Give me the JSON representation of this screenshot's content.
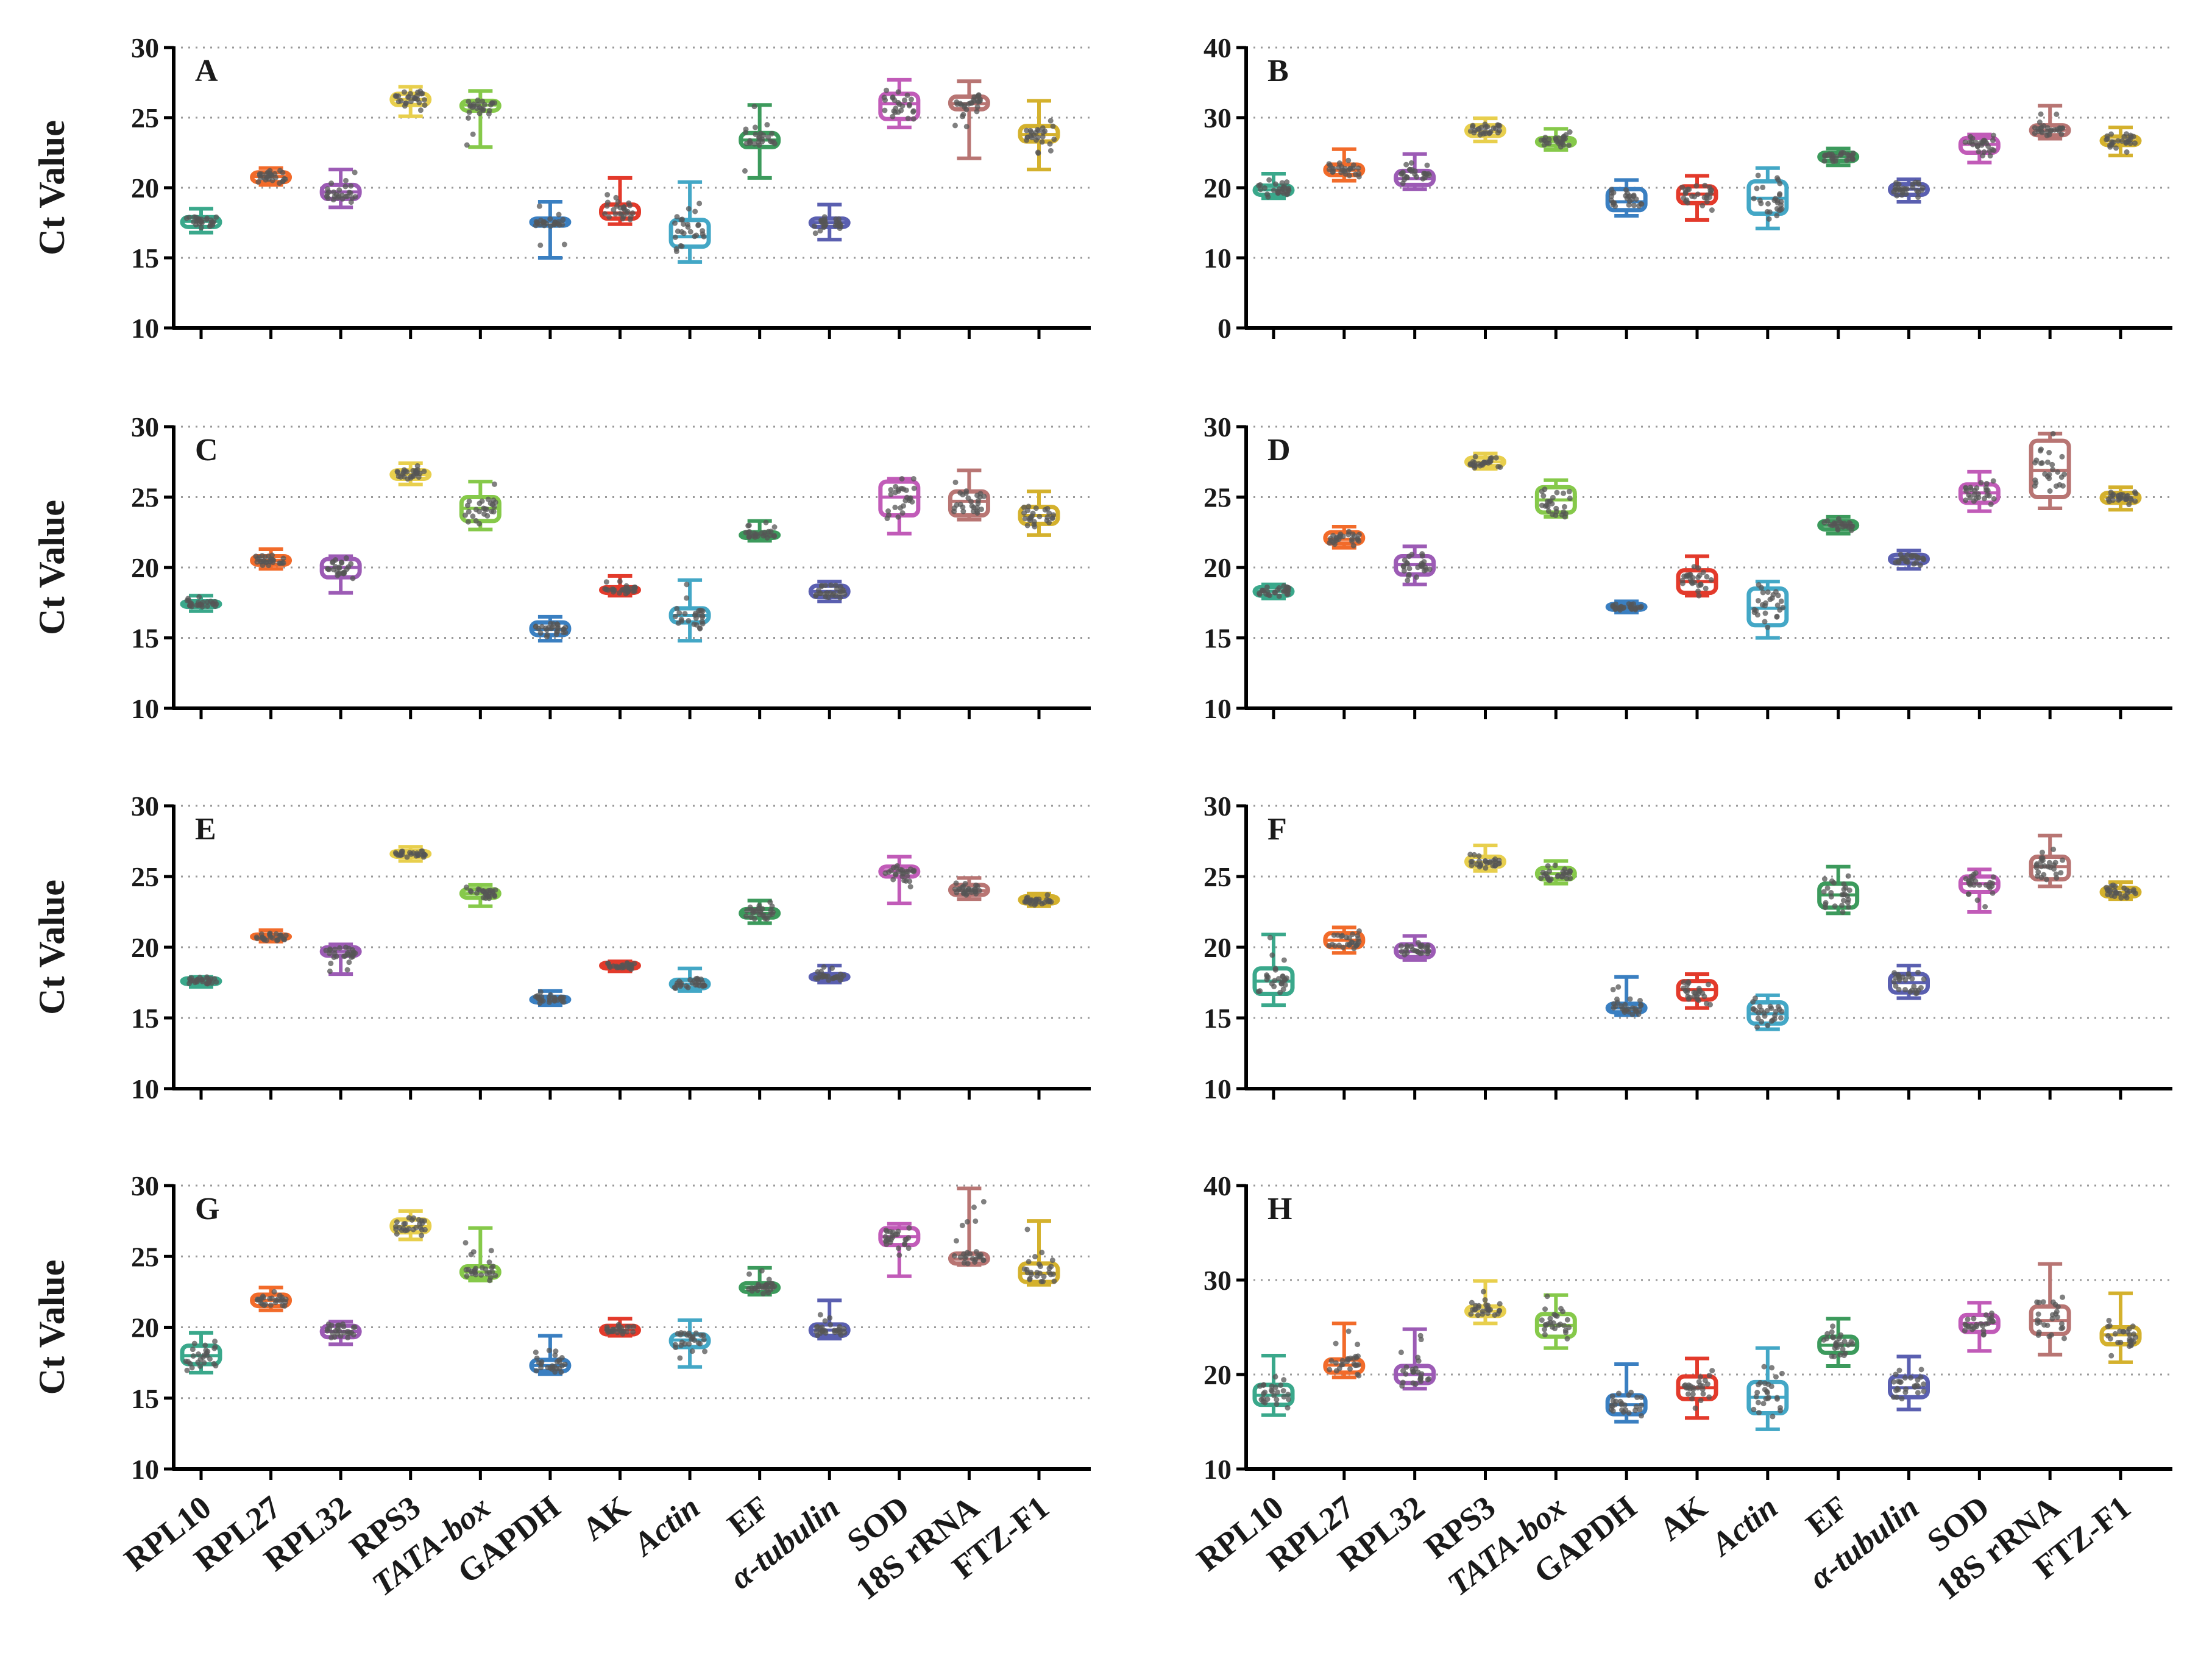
{
  "figure": {
    "ylabel": "Ct Value"
  },
  "categories": [
    {
      "label": "RPL10",
      "italic": false,
      "color": "#3aa88b"
    },
    {
      "label": "RPL27",
      "italic": false,
      "color": "#f26b2a"
    },
    {
      "label": "RPL32",
      "italic": false,
      "color": "#9c5bb5"
    },
    {
      "label": "RPS3",
      "italic": false,
      "color": "#e8cf4d"
    },
    {
      "label": "TATA-box",
      "italic": true,
      "color": "#86c94a"
    },
    {
      "label": "GAPDH",
      "italic": false,
      "color": "#3a7fc1"
    },
    {
      "label": "AK",
      "italic": false,
      "color": "#e33a2b"
    },
    {
      "label": "Actin",
      "italic": true,
      "color": "#43a7c6"
    },
    {
      "label": "EF",
      "italic": false,
      "color": "#3c9a5c"
    },
    {
      "label": "α-tubulin",
      "italic": true,
      "color": "#5a5fb0"
    },
    {
      "label": "SOD",
      "italic": false,
      "color": "#c15bb8"
    },
    {
      "label": "18S rRNA",
      "italic": false,
      "color": "#b87573"
    },
    {
      "label": "FTZ-F1",
      "italic": false,
      "color": "#d4b12d"
    }
  ],
  "chart_data": [
    {
      "panel": "A",
      "type": "box",
      "ylabel": "Ct Value",
      "ylim": [
        10,
        30
      ],
      "yticks": [
        "10",
        "15",
        "20",
        "25",
        "30"
      ],
      "grid": true,
      "boxes": [
        [
          16.8,
          17.2,
          17.6,
          17.9,
          18.5
        ],
        [
          20.2,
          20.4,
          20.8,
          21.1,
          21.4
        ],
        [
          18.6,
          19.2,
          19.7,
          20.2,
          21.3
        ],
        [
          25.1,
          25.9,
          26.3,
          26.7,
          27.2
        ],
        [
          22.9,
          25.5,
          25.9,
          26.2,
          26.9
        ],
        [
          15.0,
          17.3,
          17.6,
          17.8,
          19.0
        ],
        [
          17.4,
          17.8,
          18.2,
          18.8,
          20.7
        ],
        [
          14.7,
          15.8,
          16.5,
          17.7,
          20.4
        ],
        [
          20.7,
          22.9,
          23.4,
          23.9,
          25.9
        ],
        [
          16.3,
          17.2,
          17.5,
          17.8,
          18.8
        ],
        [
          24.3,
          24.9,
          26.0,
          26.7,
          27.7
        ],
        [
          22.1,
          25.6,
          26.0,
          26.5,
          27.6
        ],
        [
          21.3,
          23.3,
          23.8,
          24.4,
          26.2
        ]
      ]
    },
    {
      "panel": "B",
      "type": "box",
      "ylabel": "",
      "ylim": [
        0,
        40
      ],
      "yticks": [
        "0",
        "10",
        "20",
        "30",
        "40"
      ],
      "grid": true,
      "boxes": [
        [
          18.5,
          19.0,
          19.7,
          20.3,
          22.0
        ],
        [
          21.0,
          21.8,
          22.5,
          23.3,
          25.5
        ],
        [
          19.8,
          20.4,
          21.3,
          22.4,
          24.8
        ],
        [
          26.6,
          27.4,
          28.0,
          28.9,
          29.9
        ],
        [
          25.4,
          26.0,
          26.6,
          27.1,
          28.4
        ],
        [
          16.0,
          16.8,
          18.0,
          19.8,
          21.1
        ],
        [
          15.4,
          17.8,
          19.1,
          20.2,
          21.7
        ],
        [
          14.2,
          16.3,
          18.5,
          20.9,
          22.8
        ],
        [
          23.2,
          23.8,
          24.4,
          25.0,
          25.6
        ],
        [
          18.0,
          19.0,
          19.8,
          20.5,
          21.2
        ],
        [
          23.6,
          25.0,
          26.2,
          27.1,
          27.6
        ],
        [
          27.0,
          27.5,
          28.2,
          28.9,
          31.7
        ],
        [
          24.6,
          26.1,
          26.7,
          27.3,
          28.6
        ]
      ]
    },
    {
      "panel": "C",
      "type": "box",
      "ylabel": "Ct Value",
      "ylim": [
        10,
        30
      ],
      "yticks": [
        "10",
        "15",
        "20",
        "25",
        "30"
      ],
      "grid": true,
      "boxes": [
        [
          16.9,
          17.2,
          17.4,
          17.6,
          18.0
        ],
        [
          19.9,
          20.2,
          20.5,
          20.8,
          21.3
        ],
        [
          18.2,
          19.3,
          20.0,
          20.6,
          20.8
        ],
        [
          25.9,
          26.3,
          26.6,
          26.9,
          27.4
        ],
        [
          22.7,
          23.3,
          24.2,
          25.0,
          26.1
        ],
        [
          14.8,
          15.2,
          15.6,
          16.1,
          16.5
        ],
        [
          18.0,
          18.2,
          18.4,
          18.6,
          19.4
        ],
        [
          14.8,
          16.1,
          16.6,
          17.1,
          19.1
        ],
        [
          21.9,
          22.1,
          22.3,
          22.5,
          23.3
        ],
        [
          17.6,
          17.9,
          18.3,
          18.7,
          19.0
        ],
        [
          22.4,
          23.7,
          25.0,
          26.1,
          26.3
        ],
        [
          23.4,
          23.7,
          24.7,
          25.4,
          26.9
        ],
        [
          22.3,
          23.1,
          23.7,
          24.3,
          25.4
        ]
      ]
    },
    {
      "panel": "D",
      "type": "box",
      "ylabel": "",
      "ylim": [
        10,
        30
      ],
      "yticks": [
        "10",
        "15",
        "20",
        "25",
        "30"
      ],
      "grid": true,
      "boxes": [
        [
          17.8,
          18.0,
          18.3,
          18.6,
          18.8
        ],
        [
          21.4,
          21.7,
          22.0,
          22.5,
          22.9
        ],
        [
          18.8,
          19.5,
          20.2,
          20.8,
          21.5
        ],
        [
          27.0,
          27.2,
          27.5,
          27.8,
          28.1
        ],
        [
          23.6,
          23.9,
          24.8,
          25.7,
          26.2
        ],
        [
          16.8,
          17.0,
          17.2,
          17.4,
          17.6
        ],
        [
          18.0,
          18.2,
          19.0,
          19.8,
          20.8
        ],
        [
          15.0,
          15.9,
          17.1,
          18.5,
          19.0
        ],
        [
          22.4,
          22.7,
          23.0,
          23.3,
          23.6
        ],
        [
          19.9,
          20.3,
          20.6,
          20.9,
          21.2
        ],
        [
          24.0,
          24.6,
          25.3,
          25.9,
          26.8
        ],
        [
          24.2,
          25.0,
          26.9,
          29.0,
          29.5
        ],
        [
          24.1,
          24.6,
          25.0,
          25.3,
          25.7
        ]
      ]
    },
    {
      "panel": "E",
      "type": "box",
      "ylabel": "Ct Value",
      "ylim": [
        10,
        30
      ],
      "yticks": [
        "10",
        "15",
        "20",
        "25",
        "30"
      ],
      "grid": true,
      "boxes": [
        [
          17.2,
          17.4,
          17.6,
          17.8,
          17.9
        ],
        [
          20.4,
          20.6,
          20.8,
          20.9,
          21.2
        ],
        [
          18.1,
          19.4,
          19.7,
          20.0,
          20.2
        ],
        [
          26.1,
          26.4,
          26.6,
          26.8,
          27.1
        ],
        [
          22.9,
          23.5,
          23.8,
          24.1,
          24.4
        ],
        [
          15.9,
          16.1,
          16.3,
          16.5,
          16.9
        ],
        [
          18.3,
          18.5,
          18.7,
          18.9,
          19.0
        ],
        [
          16.9,
          17.1,
          17.4,
          17.7,
          18.5
        ],
        [
          21.7,
          22.1,
          22.4,
          22.7,
          23.3
        ],
        [
          17.5,
          17.7,
          17.9,
          18.1,
          18.7
        ],
        [
          23.1,
          25.0,
          25.4,
          25.7,
          26.4
        ],
        [
          23.4,
          23.7,
          24.0,
          24.4,
          24.9
        ],
        [
          22.9,
          23.1,
          23.4,
          23.6,
          23.8
        ]
      ]
    },
    {
      "panel": "F",
      "type": "box",
      "ylabel": "",
      "ylim": [
        10,
        30
      ],
      "yticks": [
        "10",
        "15",
        "20",
        "25",
        "30"
      ],
      "grid": true,
      "boxes": [
        [
          15.9,
          16.7,
          17.6,
          18.5,
          20.9
        ],
        [
          19.6,
          20.0,
          20.5,
          21.0,
          21.4
        ],
        [
          19.1,
          19.3,
          19.7,
          20.2,
          20.8
        ],
        [
          25.4,
          25.7,
          26.0,
          26.4,
          27.2
        ],
        [
          24.5,
          24.8,
          25.2,
          25.6,
          26.1
        ],
        [
          15.2,
          15.4,
          15.7,
          16.0,
          17.9
        ],
        [
          15.7,
          16.3,
          17.0,
          17.6,
          18.1
        ],
        [
          14.2,
          14.6,
          15.3,
          16.1,
          16.6
        ],
        [
          22.4,
          22.8,
          23.7,
          24.5,
          25.7
        ],
        [
          16.4,
          16.8,
          17.5,
          18.1,
          18.7
        ],
        [
          22.5,
          23.9,
          24.5,
          25.0,
          25.5
        ],
        [
          24.3,
          24.8,
          25.7,
          26.4,
          27.9
        ],
        [
          23.4,
          23.6,
          23.9,
          24.2,
          24.6
        ]
      ]
    },
    {
      "panel": "G",
      "type": "box",
      "ylabel": "Ct Value",
      "ylim": [
        10,
        30
      ],
      "yticks": [
        "10",
        "15",
        "20",
        "25",
        "30"
      ],
      "grid": true,
      "boxes": [
        [
          16.8,
          17.4,
          18.0,
          18.7,
          19.6
        ],
        [
          21.2,
          21.5,
          21.9,
          22.3,
          22.8
        ],
        [
          18.8,
          19.3,
          19.7,
          20.1,
          20.4
        ],
        [
          26.2,
          26.7,
          27.1,
          27.6,
          28.2
        ],
        [
          23.3,
          23.5,
          23.9,
          24.3,
          27.0
        ],
        [
          16.7,
          16.9,
          17.3,
          17.7,
          19.4
        ],
        [
          19.4,
          19.5,
          19.8,
          20.1,
          20.6
        ],
        [
          17.2,
          18.6,
          19.1,
          19.5,
          20.5
        ],
        [
          22.3,
          22.5,
          22.8,
          23.1,
          24.2
        ],
        [
          19.2,
          19.4,
          19.8,
          20.2,
          21.9
        ],
        [
          23.6,
          25.8,
          26.4,
          27.0,
          27.3
        ],
        [
          24.4,
          24.5,
          24.8,
          25.2,
          29.8
        ],
        [
          23.0,
          23.2,
          23.8,
          24.5,
          27.5
        ]
      ]
    },
    {
      "panel": "H",
      "type": "box",
      "ylabel": "",
      "ylim": [
        10,
        40
      ],
      "yticks": [
        "10",
        "20",
        "30",
        "40"
      ],
      "grid": true,
      "boxes": [
        [
          15.7,
          16.8,
          17.8,
          18.9,
          22.0
        ],
        [
          19.7,
          20.2,
          21.0,
          21.6,
          25.4
        ],
        [
          18.5,
          19.1,
          20.0,
          20.9,
          24.8
        ],
        [
          25.4,
          26.2,
          26.7,
          27.2,
          29.9
        ],
        [
          22.8,
          24.0,
          25.2,
          26.4,
          28.4
        ],
        [
          15.0,
          15.8,
          16.8,
          17.8,
          21.1
        ],
        [
          15.4,
          17.4,
          18.6,
          19.8,
          21.7
        ],
        [
          14.2,
          15.9,
          17.6,
          19.2,
          22.8
        ],
        [
          20.9,
          22.3,
          23.1,
          24.0,
          25.9
        ],
        [
          16.3,
          17.6,
          18.6,
          19.8,
          21.9
        ],
        [
          22.5,
          24.5,
          25.4,
          26.3,
          27.6
        ],
        [
          22.1,
          24.3,
          25.7,
          27.2,
          31.7
        ],
        [
          21.3,
          23.2,
          24.2,
          25.0,
          28.6
        ]
      ]
    }
  ]
}
